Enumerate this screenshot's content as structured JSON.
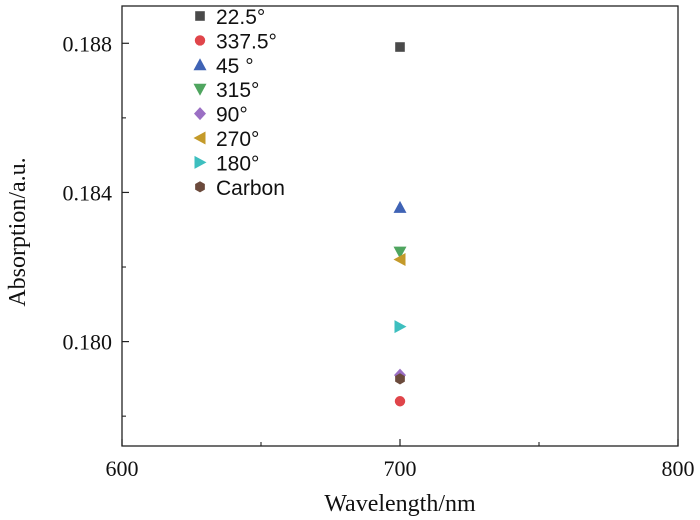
{
  "chart_data": {
    "type": "scatter",
    "title": "",
    "xlabel": "Wavelength/nm",
    "ylabel": "Absorption/a.u.",
    "xlim": [
      600,
      800
    ],
    "ylim": [
      0.1772,
      0.189
    ],
    "x_ticks": [
      600,
      700,
      800
    ],
    "x_tick_labels": [
      "600",
      "700",
      "800"
    ],
    "x_minor_ticks": [
      650,
      750
    ],
    "y_ticks": [
      0.18,
      0.184,
      0.188
    ],
    "y_tick_labels": [
      "0.180",
      "0.184",
      "0.188"
    ],
    "y_minor_ticks": [
      0.178,
      0.182,
      0.186
    ],
    "grid": false,
    "legend_position": "top-left",
    "series": [
      {
        "name": "22.5°",
        "marker": "square",
        "color": "#4a4a4a",
        "x": [
          700
        ],
        "y": [
          0.1879
        ]
      },
      {
        "name": "337.5°",
        "marker": "circle",
        "color": "#e0454a",
        "x": [
          700
        ],
        "y": [
          0.1784
        ]
      },
      {
        "name": "45 °",
        "marker": "triangle-up",
        "color": "#3f63b5",
        "x": [
          700
        ],
        "y": [
          0.1836
        ]
      },
      {
        "name": "315°",
        "marker": "triangle-down",
        "color": "#4fa55f",
        "x": [
          700
        ],
        "y": [
          0.1824
        ]
      },
      {
        "name": "90°",
        "marker": "diamond",
        "color": "#9b6fc4",
        "x": [
          700
        ],
        "y": [
          0.1791
        ]
      },
      {
        "name": "270°",
        "marker": "triangle-left",
        "color": "#c49a2a",
        "x": [
          700
        ],
        "y": [
          0.1822
        ]
      },
      {
        "name": "180°",
        "marker": "triangle-right",
        "color": "#3dbfbf",
        "x": [
          700
        ],
        "y": [
          0.1804
        ]
      },
      {
        "name": "Carbon",
        "marker": "hexagon",
        "color": "#6b4a3c",
        "x": [
          700
        ],
        "y": [
          0.179
        ]
      }
    ]
  }
}
